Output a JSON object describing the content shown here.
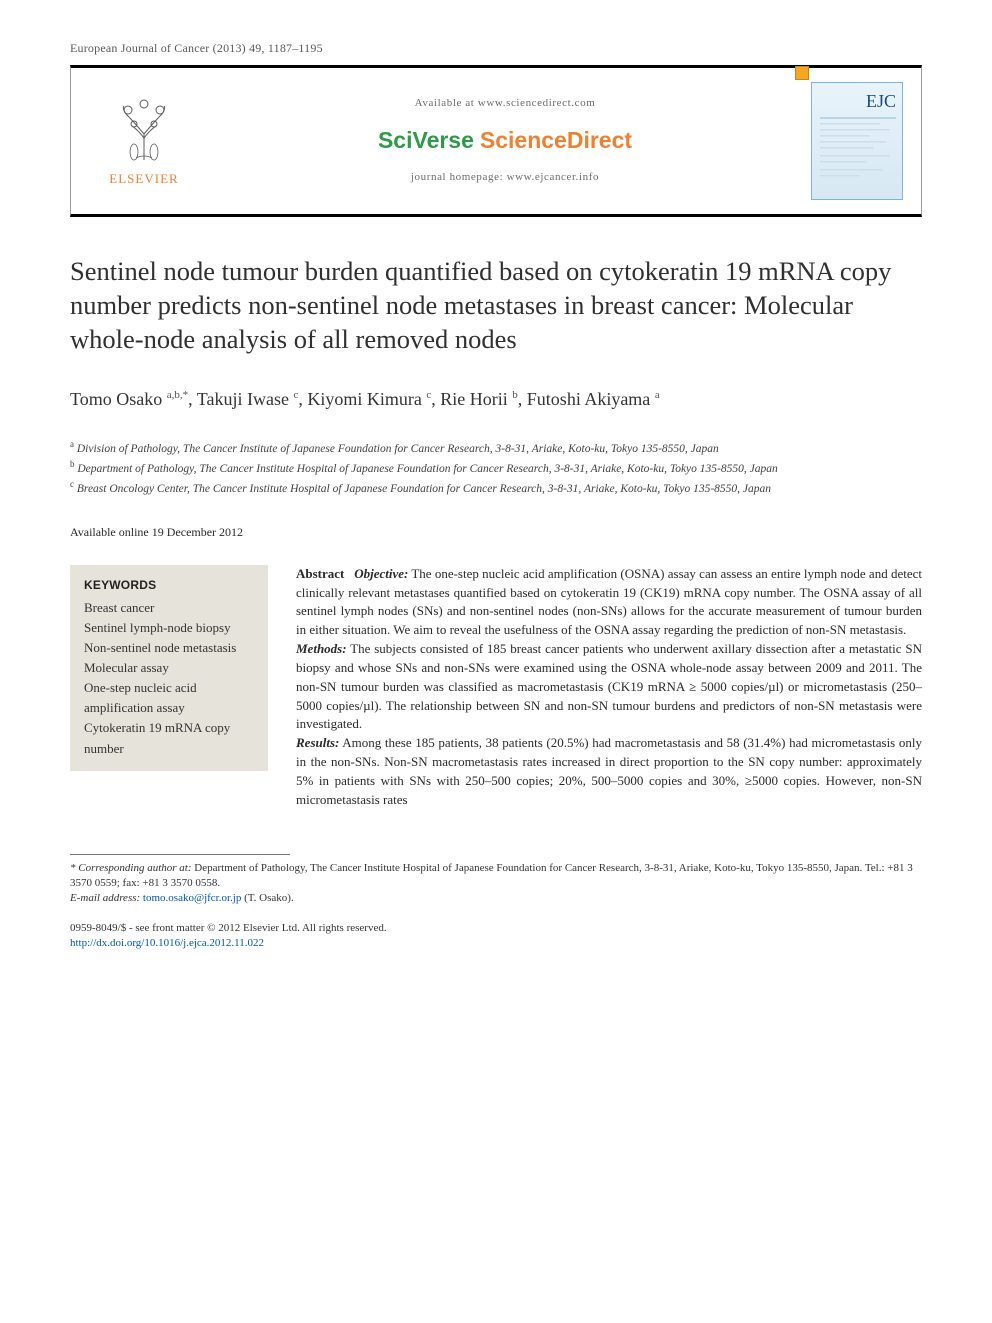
{
  "running_head": "European Journal of Cancer (2013) 49, 1187–1195",
  "header": {
    "elsevier": "ELSEVIER",
    "available_at": "Available at www.sciencedirect.com",
    "sciverse": "SciVerse",
    "sciencedirect": "ScienceDirect",
    "homepage": "journal homepage: www.ejcancer.info",
    "journal_abbr": "EJC"
  },
  "title": "Sentinel node tumour burden quantified based on cytokeratin 19 mRNA copy number predicts non-sentinel node metastases in breast cancer: Molecular whole-node analysis of all removed nodes",
  "authors_html": "Tomo Osako <sup>a,b,*</sup>, Takuji Iwase <sup>c</sup>, Kiyomi Kimura <sup>c</sup>, Rie Horii <sup>b</sup>, Futoshi Akiyama <sup>a</sup>",
  "affiliations": {
    "a": "Division of Pathology, The Cancer Institute of Japanese Foundation for Cancer Research, 3‑8‑31, Ariake, Koto‑ku, Tokyo 135‑8550, Japan",
    "b": "Department of Pathology, The Cancer Institute Hospital of Japanese Foundation for Cancer Research, 3‑8‑31, Ariake, Koto‑ku, Tokyo 135‑8550, Japan",
    "c": "Breast Oncology Center, The Cancer Institute Hospital of Japanese Foundation for Cancer Research, 3‑8‑31, Ariake, Koto‑ku, Tokyo 135‑8550, Japan"
  },
  "available_online": "Available online 19 December 2012",
  "keywords": {
    "heading": "KEYWORDS",
    "items": [
      "Breast cancer",
      "Sentinel lymph-node biopsy",
      "Non-sentinel node metastasis",
      "Molecular assay",
      "One-step nucleic acid amplification assay",
      "Cytokeratin 19 mRNA copy number"
    ]
  },
  "abstract": {
    "label": "Abstract",
    "objective_label": "Objective:",
    "objective": "The one-step nucleic acid amplification (OSNA) assay can assess an entire lymph node and detect clinically relevant metastases quantified based on cytokeratin 19 (CK19) mRNA copy number. The OSNA assay of all sentinel lymph nodes (SNs) and non-sentinel nodes (non-SNs) allows for the accurate measurement of tumour burden in either situation. We aim to reveal the usefulness of the OSNA assay regarding the prediction of non-SN metastasis.",
    "methods_label": "Methods:",
    "methods": "The subjects consisted of 185 breast cancer patients who underwent axillary dissection after a metastatic SN biopsy and whose SNs and non-SNs were examined using the OSNA whole-node assay between 2009 and 2011. The non-SN tumour burden was classified as macrometastasis (CK19 mRNA ≥ 5000 copies/µl) or micrometastasis (250–5000 copies/µl). The relationship between SN and non-SN tumour burdens and predictors of non-SN metastasis were investigated.",
    "results_label": "Results:",
    "results": "Among these 185 patients, 38 patients (20.5%) had macrometastasis and 58 (31.4%) had micrometastasis only in the non-SNs. Non-SN macrometastasis rates increased in direct proportion to the SN copy number: approximately 5% in patients with SNs with 250–500 copies; 20%, 500–5000 copies and 30%, ≥5000 copies. However, non-SN micrometastasis rates"
  },
  "footnotes": {
    "corresponding_label": "* Corresponding author at:",
    "corresponding": "Department of Pathology, The Cancer Institute Hospital of Japanese Foundation for Cancer Research, 3‑8‑31, Ariake, Koto‑ku, Tokyo 135‑8550, Japan. Tel.: +81 3 3570 0559; fax: +81 3 3570 0558.",
    "email_label": "E-mail address:",
    "email": "tomo.osako@jfcr.or.jp",
    "email_who": "(T. Osako)."
  },
  "copyright": {
    "issn_line": "0959-8049/$ - see front matter © 2012 Elsevier Ltd. All rights reserved.",
    "doi": "http://dx.doi.org/10.1016/j.ejca.2012.11.022"
  },
  "colors": {
    "elsevier_orange": "#ef8031",
    "sciverse_green": "#2e9b47",
    "link_blue": "#0056b3",
    "keywords_bg": "#e6e3db",
    "cover_blue": "#1a4b7a"
  }
}
